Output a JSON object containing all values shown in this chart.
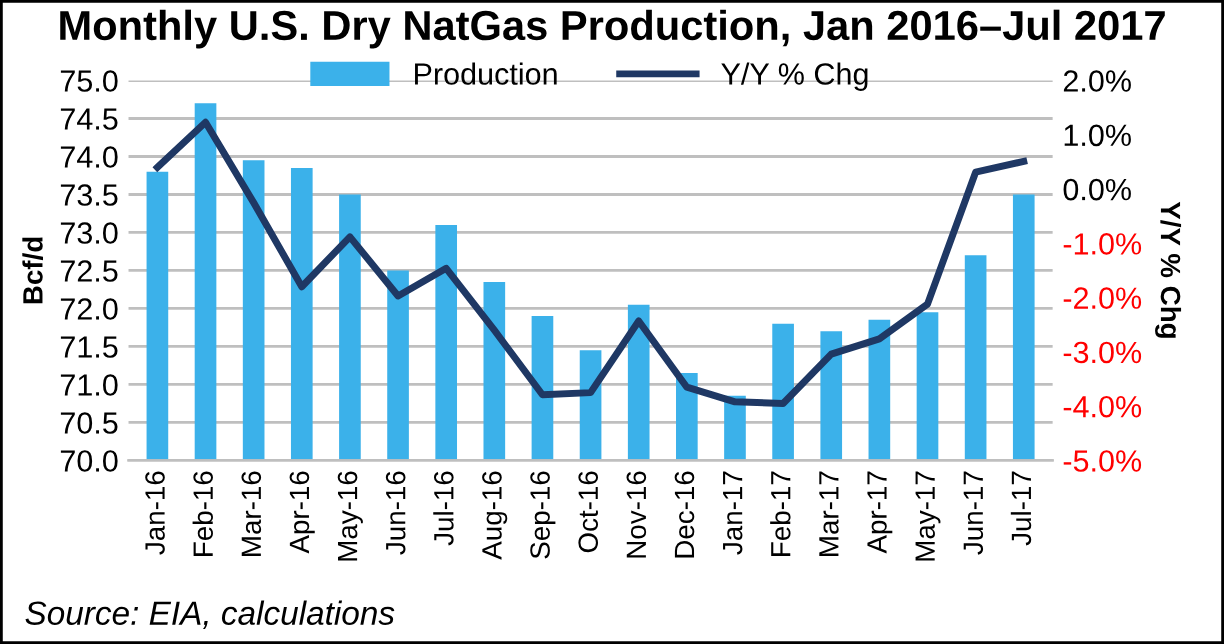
{
  "chart_data": {
    "type": "bar",
    "title": "Monthly U.S. Dry NatGas Production, Jan 2016–Jul 2017",
    "ylabel": "Bcf/d",
    "y2label": "Y/Y % Chg",
    "categories": [
      "Jan-16",
      "Feb-16",
      "Mar-16",
      "Apr-16",
      "May-16",
      "Jun-16",
      "Jul-16",
      "Aug-16",
      "Sep-16",
      "Oct-16",
      "Nov-16",
      "Dec-16",
      "Jan-17",
      "Feb-17",
      "Mar-17",
      "Apr-17",
      "May-17",
      "Jun-17",
      "Jul-17"
    ],
    "series": [
      {
        "name": "Production",
        "color": "#3bb1ea",
        "values": [
          73.8,
          74.7,
          73.95,
          73.85,
          73.5,
          72.5,
          73.1,
          72.35,
          71.9,
          71.45,
          72.05,
          71.15,
          70.85,
          71.8,
          71.7,
          71.85,
          71.95,
          72.7,
          73.5
        ]
      },
      {
        "name": "Y/Y % Chg",
        "type": "line",
        "axis": "y2",
        "color": "#1f3864",
        "values": [
          0.4,
          1.23,
          -0.25,
          -1.8,
          -0.88,
          -1.97,
          -1.46,
          -2.6,
          -3.79,
          -3.75,
          -2.43,
          -3.65,
          -3.92,
          -3.95,
          -3.04,
          -2.76,
          -2.12,
          0.31,
          0.51
        ]
      }
    ],
    "ylim": [
      70.0,
      75.0
    ],
    "yticks": [
      {
        "value": 70,
        "label": "70.0"
      },
      {
        "value": 70.5,
        "label": "70.5"
      },
      {
        "value": 71,
        "label": "71.0"
      },
      {
        "value": 71.5,
        "label": "71.5"
      },
      {
        "value": 72,
        "label": "72.0"
      },
      {
        "value": 72.5,
        "label": "72.5"
      },
      {
        "value": 73,
        "label": "73.0"
      },
      {
        "value": 73.5,
        "label": "73.5"
      },
      {
        "value": 74,
        "label": "74.0"
      },
      {
        "value": 74.5,
        "label": "74.5"
      },
      {
        "value": 75,
        "label": "75.0"
      }
    ],
    "y2lim": [
      -5,
      2
    ],
    "y2ticks": [
      {
        "value": -5,
        "label": "-5.0%"
      },
      {
        "value": -4,
        "label": "-4.0%"
      },
      {
        "value": -3,
        "label": "-3.0%"
      },
      {
        "value": -2,
        "label": "-2.0%"
      },
      {
        "value": -1,
        "label": "-1.0%"
      },
      {
        "value": 0,
        "label": "0.0%"
      },
      {
        "value": 1,
        "label": "1.0%"
      },
      {
        "value": 2,
        "label": "2.0%"
      }
    ],
    "grid": "y",
    "legend": "top",
    "marker": "none",
    "line_style": "solid",
    "annotations": [
      "Source: EIA, calculations"
    ]
  }
}
